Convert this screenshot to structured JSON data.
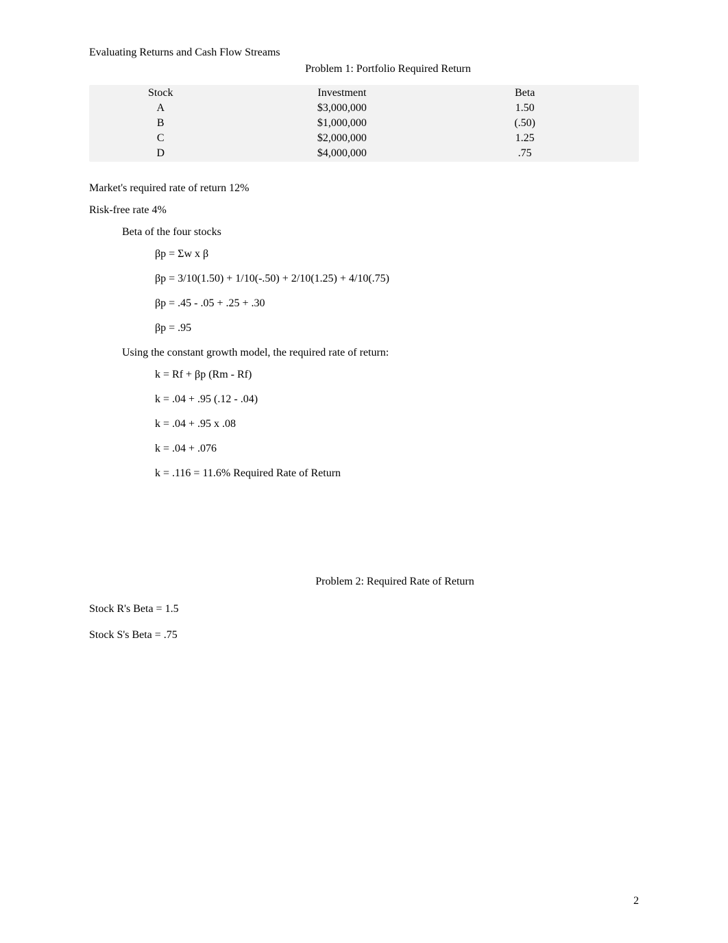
{
  "header": {
    "line1": "Evaluating Returns and Cash Flow Streams",
    "problem1_title": "Problem 1: Portfolio Required Return"
  },
  "table": {
    "headers": {
      "stock": "Stock",
      "investment": "Investment",
      "beta": "Beta"
    },
    "rows": [
      {
        "stock": "A",
        "investment": "$3,000,000",
        "beta": "1.50"
      },
      {
        "stock": "B",
        "investment": "$1,000,000",
        "beta": "(.50)"
      },
      {
        "stock": "C",
        "investment": "$2,000,000",
        "beta": "1.25"
      },
      {
        "stock": "D",
        "investment": "$4,000,000",
        "beta": ".75"
      }
    ]
  },
  "assumptions": {
    "market_return": "Market's required rate of return 12%",
    "risk_free": "Risk-free rate 4%"
  },
  "beta_section": {
    "heading": "Beta of the four stocks",
    "eq1": "βp = Σw x β",
    "eq2": "βp = 3/10(1.50) + 1/10(-.50) + 2/10(1.25) + 4/10(.75)",
    "eq3": "βp = .45 - .05 + .25 + .30",
    "eq4": "βp = .95"
  },
  "capm_section": {
    "heading": "Using the constant growth model, the required rate of return:",
    "eq1": "k = Rf + βp (Rm - Rf)",
    "eq2": "k = .04 + .95 (.12 - .04)",
    "eq3": "k = .04 + .95 x .08",
    "eq4": "k = .04 + .076",
    "eq5": "k = .116 = 11.6% Required Rate of Return"
  },
  "problem2": {
    "title": "Problem 2: Required Rate of Return",
    "beta_r": "Stock R's Beta = 1.5",
    "beta_s": "Stock S's Beta = .75"
  },
  "page_number": "2"
}
